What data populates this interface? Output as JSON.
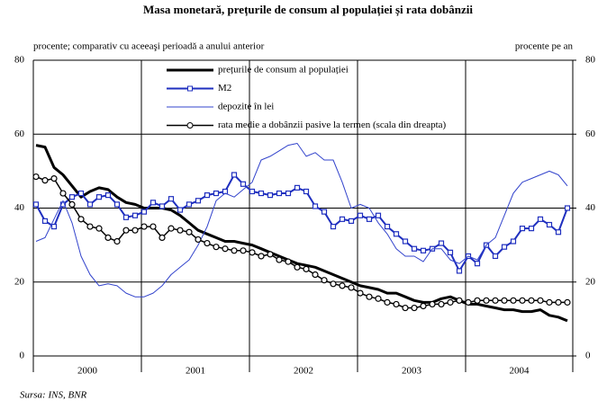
{
  "chart_data": {
    "type": "line",
    "title": "Masa monetară, prețurile de consum al populației și rata dobânzii",
    "y_label": "procente; comparativ cu aceeaşi perioadă a anului anterior",
    "y2_label": "procente pe an",
    "source": "Sursa: INS, BNR",
    "categories": [
      null,
      null,
      null,
      null,
      null,
      null,
      "2000",
      null,
      null,
      null,
      null,
      null,
      null,
      null,
      null,
      null,
      null,
      null,
      "2001",
      null,
      null,
      null,
      null,
      null,
      null,
      null,
      null,
      null,
      null,
      null,
      "2002",
      null,
      null,
      null,
      null,
      null,
      null,
      null,
      null,
      null,
      null,
      null,
      "2003",
      null,
      null,
      null,
      null,
      null,
      null,
      null,
      null,
      null,
      null,
      null,
      "2004",
      null,
      null,
      null,
      null,
      null
    ],
    "ylim": [
      0,
      80
    ],
    "yticks": [
      0,
      20,
      40,
      60,
      80
    ],
    "y2lim": [
      0,
      80
    ],
    "y2ticks": [
      0,
      20,
      40,
      60,
      80
    ],
    "grid": true,
    "series": [
      {
        "name": "prețurile de consum al populației",
        "color": "#000000",
        "values": [
          57,
          56.5,
          51,
          49,
          46,
          43,
          44.5,
          45.5,
          45,
          43,
          41.5,
          41,
          40,
          40,
          40,
          39.5,
          38,
          36,
          34,
          33,
          32,
          31,
          31,
          30.5,
          30,
          29,
          28,
          27,
          26,
          25,
          24.5,
          24,
          23,
          22,
          21,
          20,
          19,
          18.5,
          18,
          17,
          17,
          16,
          15,
          14.5,
          14.5,
          15.5,
          16,
          15,
          14,
          14,
          13.5,
          13,
          12.5,
          12.5,
          12,
          12,
          12.5,
          11,
          10.5,
          9.5
        ]
      },
      {
        "name": "M2",
        "color": "#1f2fbf",
        "marker": "square",
        "values": [
          41,
          36.5,
          35,
          41,
          43,
          44,
          41,
          43,
          43.5,
          41,
          37.5,
          38,
          39,
          41.5,
          40.5,
          42.5,
          39.5,
          41,
          42,
          43.5,
          44,
          44.5,
          49,
          46.5,
          44.5,
          44,
          43.5,
          44,
          44,
          45.5,
          44.5,
          40.5,
          39,
          35,
          37,
          36.5,
          38,
          37,
          38,
          35,
          33,
          31,
          29,
          28.5,
          29,
          30.5,
          28,
          23,
          27,
          25,
          30,
          27,
          29.5,
          31,
          34.5,
          34.5,
          37,
          35.5,
          33.5,
          40
        ]
      },
      {
        "name": "depozite în lei",
        "color": "#3344cc",
        "values": [
          31,
          32,
          37,
          42,
          36,
          27,
          22,
          19,
          19.5,
          19,
          17,
          16,
          16,
          17,
          19,
          22,
          24,
          26,
          30,
          35,
          42,
          44,
          43,
          45,
          47,
          53,
          54,
          55.5,
          57,
          57.5,
          54,
          55,
          53,
          53,
          47,
          40,
          41,
          40,
          36,
          33,
          29,
          27,
          27,
          25.5,
          29,
          29,
          26,
          25,
          27,
          26,
          30,
          32,
          38,
          44,
          47,
          48,
          49,
          50,
          49,
          46
        ]
      },
      {
        "name": "rata medie a dobânzii pasive la termen (scala din dreapta)",
        "color": "#000000",
        "marker": "circle",
        "axis": "y2",
        "values": [
          48.5,
          47.5,
          48,
          44,
          41,
          37,
          35,
          34.5,
          32,
          31,
          34,
          34,
          35,
          35,
          32,
          34.5,
          34,
          33.5,
          31.5,
          30.5,
          29.5,
          29,
          28.5,
          28.5,
          28,
          27,
          27.5,
          26,
          25.5,
          24,
          23.5,
          22,
          20.5,
          19.5,
          19,
          18.5,
          17,
          16,
          15.5,
          14.5,
          14,
          13,
          13,
          13.5,
          14,
          14,
          14.5,
          15,
          14.5,
          15,
          15,
          15,
          15,
          15,
          15,
          15,
          15,
          14.5,
          14.5,
          14.5
        ]
      }
    ]
  }
}
